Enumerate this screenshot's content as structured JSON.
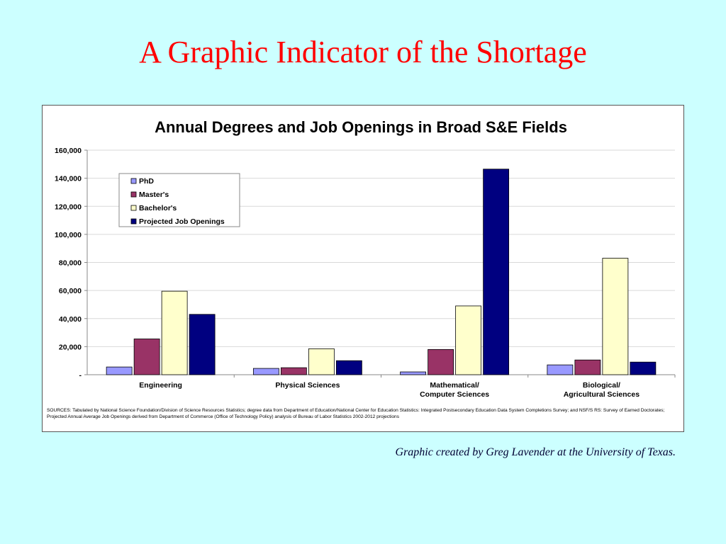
{
  "slide": {
    "title": "A Graphic Indicator of the Shortage",
    "credit": "Graphic created by Greg Lavender at the University of Texas."
  },
  "chart_data": {
    "type": "bar",
    "title": "Annual Degrees and Job Openings in Broad S&E Fields",
    "categories": [
      [
        "Engineering"
      ],
      [
        "Physical Sciences"
      ],
      [
        "Mathematical/",
        "Computer Sciences"
      ],
      [
        "Biological/",
        "Agricultural Sciences"
      ]
    ],
    "series": [
      {
        "name": "PhD",
        "color": "#9999ff",
        "values": [
          5500,
          4500,
          2000,
          7000
        ]
      },
      {
        "name": "Master's",
        "color": "#993366",
        "values": [
          25500,
          5000,
          18000,
          10500
        ]
      },
      {
        "name": "Bachelor's",
        "color": "#ffffcc",
        "values": [
          59500,
          18500,
          49000,
          83000
        ]
      },
      {
        "name": "Projected Job Openings",
        "color": "#000080",
        "values": [
          43000,
          10000,
          146500,
          9000
        ]
      }
    ],
    "ylim": [
      0,
      160000
    ],
    "yticks": [
      0,
      20000,
      40000,
      60000,
      80000,
      100000,
      120000,
      140000,
      160000
    ],
    "ytick_labels": [
      "-",
      "20,000",
      "40,000",
      "60,000",
      "80,000",
      "100,000",
      "120,000",
      "140,000",
      "160,000"
    ],
    "xlabel": "",
    "ylabel": "",
    "grid": true,
    "legend_position": "top-left",
    "sources": "SOURCES:    Tabulated by National Science Foundation/Division of Science Resources Statistics; degree data from Department of Education/National Center for Education Statistics:  Integrated Postsecondary Education Data System Completions Survey; and NSF/S                RS: Survey of Earned Doctorates; Projected Annual Average Job Openings derived from Department of Commerce (Office of Technology Policy) analysis of Bureau of Labor Statistics 2002-2012 projections"
  }
}
